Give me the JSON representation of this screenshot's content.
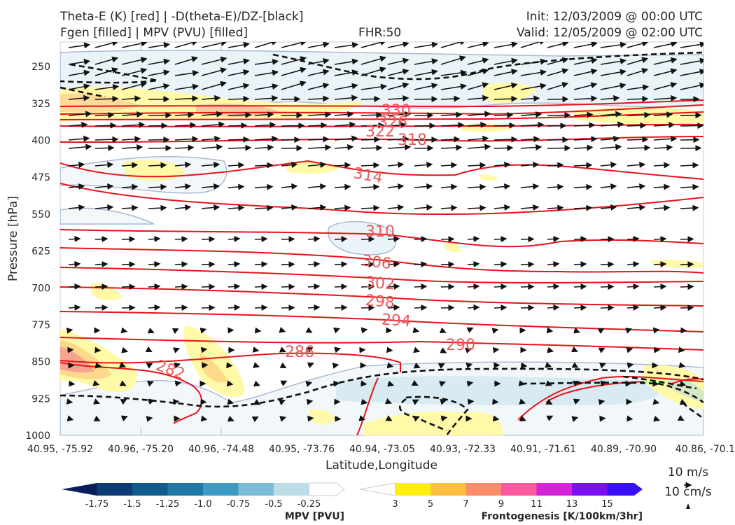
{
  "titles": {
    "line1_left": "Theta-E (K) [red] | -D(theta-E)/DZ-[black]",
    "line2_left": "Fgen [filled] | MPV (PVU) [filled]",
    "fhr": "FHR:50",
    "init": "Init: 12/03/2009 @ 00:00 UTC",
    "valid": "Valid: 12/05/2009 @ 02:00 UTC"
  },
  "chart_data": {
    "type": "cross-section",
    "xlabel": "Latitude,Longitude",
    "ylabel": "Pressure [hPa]",
    "y_ticks": [
      "250",
      "325",
      "400",
      "475",
      "550",
      "625",
      "700",
      "775",
      "850",
      "925",
      "1000"
    ],
    "y_values": [
      250,
      325,
      400,
      475,
      550,
      625,
      700,
      775,
      850,
      925,
      1000
    ],
    "ylim": [
      1000,
      200
    ],
    "x_ticks": [
      "40.95, -75.92",
      "40.96, -75.20",
      "40.96, -74.48",
      "40.95, -73.76",
      "40.94, -73.05",
      "40.93, -72.33",
      "40.91, -71.61",
      "40.89, -70.90",
      "40.86, -70.1"
    ],
    "theta_e_contours": [
      {
        "value": "330",
        "pressure_at_label": 338
      },
      {
        "value": "326",
        "pressure_at_label": 354
      },
      {
        "value": "322",
        "pressure_at_label": 373
      },
      {
        "value": "318",
        "pressure_at_label": 387
      },
      {
        "value": "314",
        "pressure_at_label": 462
      },
      {
        "value": "310",
        "pressure_at_label": 580
      },
      {
        "value": "306",
        "pressure_at_label": 652
      },
      {
        "value": "302",
        "pressure_at_label": 687
      },
      {
        "value": "298",
        "pressure_at_label": 713
      },
      {
        "value": "294",
        "pressure_at_label": 750
      },
      {
        "value": "290",
        "pressure_at_label": 827
      },
      {
        "value": "286",
        "pressure_at_label": 838
      },
      {
        "value": "282",
        "pressure_at_label": 864
      }
    ],
    "colorbars": {
      "mpv": {
        "title": "MPV [PVU]",
        "labels": [
          "-1.75",
          "-1.5",
          "-1.25",
          "-1.0",
          "-0.75",
          "-0.5",
          "-0.25"
        ],
        "colors": [
          "#0a1e5e",
          "#0d3b73",
          "#105a8c",
          "#1f78a6",
          "#3d9ac2",
          "#7bbdd6",
          "#bcdde8",
          "#ffffff"
        ]
      },
      "fgen": {
        "title": "Frontogenesis [K/100km/3hr]",
        "labels": [
          "3",
          "5",
          "7",
          "9",
          "11",
          "13",
          "15"
        ],
        "colors": [
          "#ffffff",
          "#ffee10",
          "#fec040",
          "#fd8c6a",
          "#fb58a0",
          "#d424d8",
          "#7a10f0",
          "#3a10f8"
        ]
      }
    },
    "wind_legend": [
      "10 m/s",
      "10 cm/s"
    ]
  }
}
